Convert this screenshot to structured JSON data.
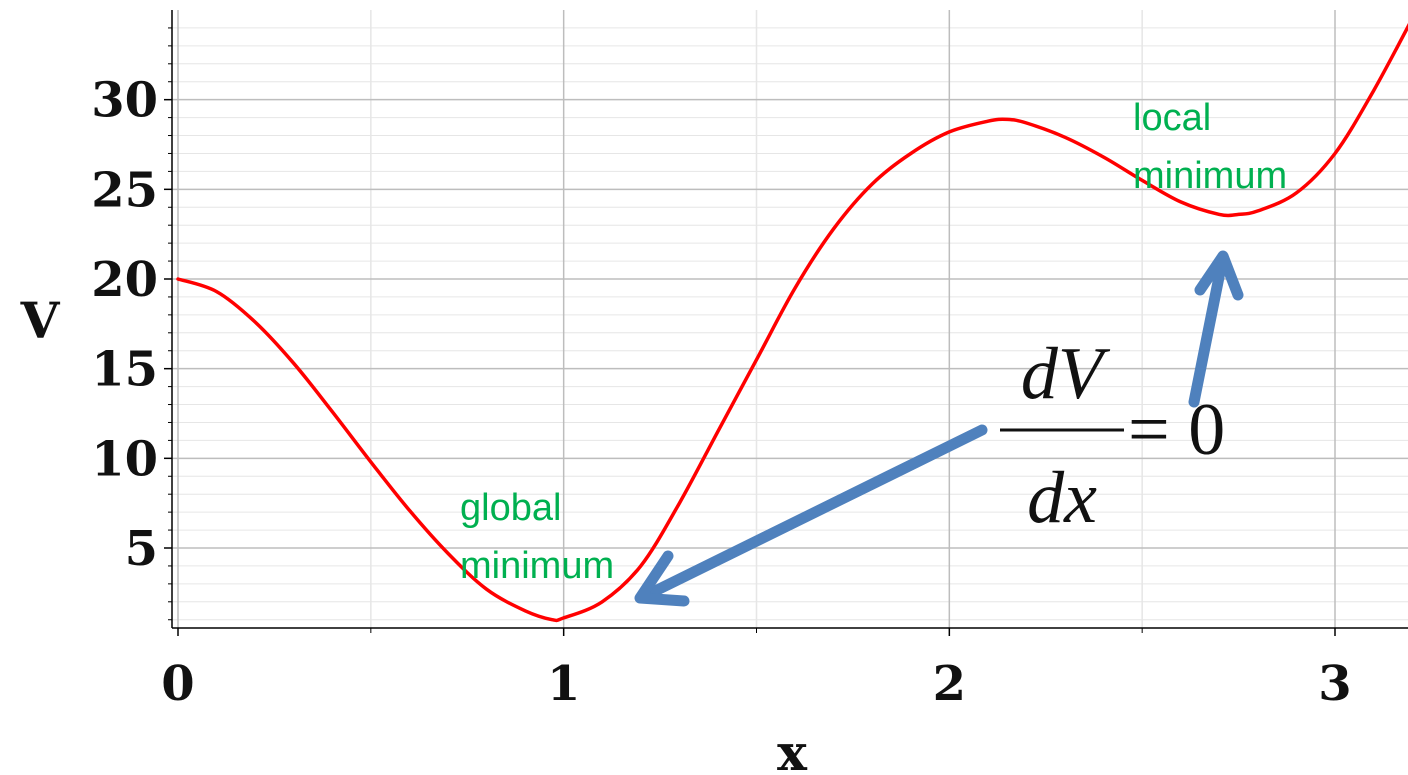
{
  "chart_data": {
    "type": "line",
    "xlabel": "x",
    "ylabel": "V",
    "xlim": [
      0,
      3.2
    ],
    "ylim": [
      0.5,
      35
    ],
    "x_ticks": [
      0,
      1,
      2,
      3
    ],
    "y_ticks": [
      5,
      10,
      15,
      20,
      25,
      30
    ],
    "grid": true,
    "series": [
      {
        "color": "#ff0000",
        "points": [
          [
            0.0,
            20.0
          ],
          [
            0.1,
            19.3
          ],
          [
            0.2,
            17.6
          ],
          [
            0.3,
            15.3
          ],
          [
            0.4,
            12.6
          ],
          [
            0.5,
            9.8
          ],
          [
            0.6,
            7.1
          ],
          [
            0.7,
            4.7
          ],
          [
            0.8,
            2.7
          ],
          [
            0.9,
            1.5
          ],
          [
            0.97,
            1.0
          ],
          [
            1.0,
            1.1
          ],
          [
            1.1,
            2.0
          ],
          [
            1.2,
            4.0
          ],
          [
            1.3,
            7.5
          ],
          [
            1.4,
            11.5
          ],
          [
            1.5,
            15.5
          ],
          [
            1.6,
            19.5
          ],
          [
            1.7,
            22.8
          ],
          [
            1.8,
            25.3
          ],
          [
            1.9,
            27.0
          ],
          [
            2.0,
            28.2
          ],
          [
            2.1,
            28.8
          ],
          [
            2.15,
            28.9
          ],
          [
            2.2,
            28.7
          ],
          [
            2.3,
            27.9
          ],
          [
            2.4,
            26.8
          ],
          [
            2.5,
            25.5
          ],
          [
            2.6,
            24.3
          ],
          [
            2.7,
            23.6
          ],
          [
            2.75,
            23.6
          ],
          [
            2.8,
            23.8
          ],
          [
            2.9,
            24.8
          ],
          [
            3.0,
            27.0
          ],
          [
            3.1,
            30.5
          ],
          [
            3.2,
            34.5
          ]
        ]
      }
    ],
    "annotations": [
      {
        "text_lines": [
          "global",
          "minimum"
        ],
        "color": "#00b050"
      },
      {
        "text_lines": [
          "local",
          "minimum"
        ],
        "color": "#00b050"
      }
    ],
    "equation": {
      "numerator": "dV",
      "denominator": "dx",
      "rhs": "= 0"
    },
    "arrow_color": "#4f81bd"
  }
}
